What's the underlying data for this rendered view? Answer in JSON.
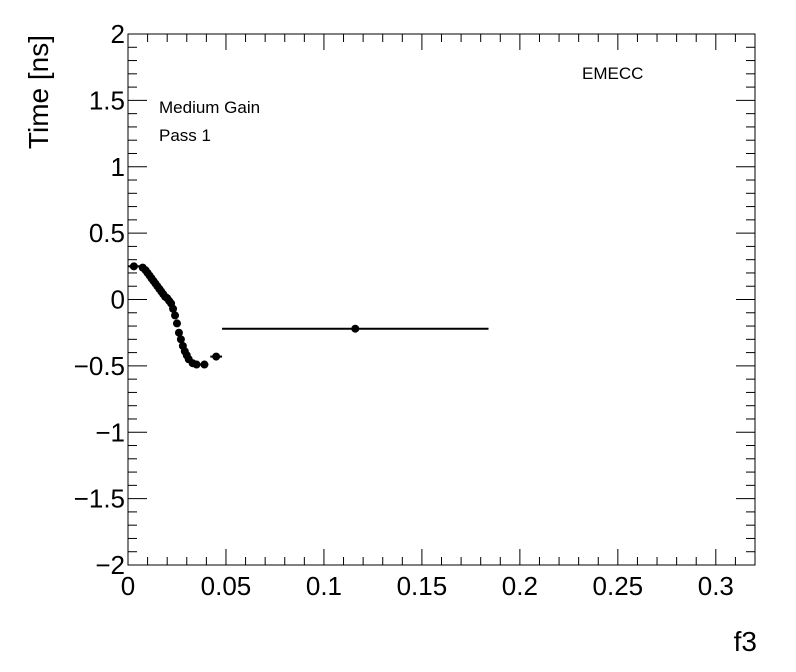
{
  "chart_data": {
    "type": "scatter",
    "xlabel": "f3",
    "ylabel": "Time [ns]",
    "xlim": [
      0,
      0.32
    ],
    "ylim": [
      -2,
      2
    ],
    "x_ticks": [
      0,
      0.05,
      0.1,
      0.15,
      0.2,
      0.25,
      0.3
    ],
    "x_tick_labels": [
      "0",
      "0.05",
      "0.1",
      "0.15",
      "0.2",
      "0.25",
      "0.3"
    ],
    "y_ticks": [
      -2,
      -1.5,
      -1,
      -0.5,
      0,
      0.5,
      1,
      1.5,
      2
    ],
    "y_tick_labels": [
      "−2",
      "−1.5",
      "−1",
      "−0.5",
      "0",
      "0.5",
      "1",
      "1.5",
      "2"
    ],
    "annotations": {
      "gain": "Medium Gain",
      "pass": "Pass 1",
      "region": "EMECC"
    },
    "grid": false,
    "series": [
      {
        "points": [
          {
            "x": 0.003,
            "y": 0.25,
            "xerr": 0.003
          },
          {
            "x": 0.0075,
            "y": 0.24,
            "xerr": 0.001
          },
          {
            "x": 0.009,
            "y": 0.22,
            "xerr": 0.001
          },
          {
            "x": 0.01,
            "y": 0.2,
            "xerr": 0.001
          },
          {
            "x": 0.011,
            "y": 0.18,
            "xerr": 0.001
          },
          {
            "x": 0.012,
            "y": 0.16,
            "xerr": 0.001
          },
          {
            "x": 0.013,
            "y": 0.14,
            "xerr": 0.001
          },
          {
            "x": 0.014,
            "y": 0.12,
            "xerr": 0.001
          },
          {
            "x": 0.015,
            "y": 0.1,
            "xerr": 0.001
          },
          {
            "x": 0.016,
            "y": 0.08,
            "xerr": 0.001
          },
          {
            "x": 0.017,
            "y": 0.06,
            "xerr": 0.001
          },
          {
            "x": 0.018,
            "y": 0.04,
            "xerr": 0.001
          },
          {
            "x": 0.019,
            "y": 0.02,
            "xerr": 0.001
          },
          {
            "x": 0.02,
            "y": 0.01,
            "xerr": 0.001
          },
          {
            "x": 0.021,
            "y": -0.01,
            "xerr": 0.001
          },
          {
            "x": 0.022,
            "y": -0.03,
            "xerr": 0.001
          },
          {
            "x": 0.023,
            "y": -0.07,
            "xerr": 0.001
          },
          {
            "x": 0.024,
            "y": -0.12,
            "xerr": 0.001
          },
          {
            "x": 0.025,
            "y": -0.18,
            "xerr": 0.001
          },
          {
            "x": 0.026,
            "y": -0.25,
            "xerr": 0.001
          },
          {
            "x": 0.027,
            "y": -0.3,
            "xerr": 0.001
          },
          {
            "x": 0.028,
            "y": -0.35,
            "xerr": 0.001
          },
          {
            "x": 0.029,
            "y": -0.39,
            "xerr": 0.001
          },
          {
            "x": 0.03,
            "y": -0.42,
            "xerr": 0.001
          },
          {
            "x": 0.031,
            "y": -0.45,
            "xerr": 0.001
          },
          {
            "x": 0.033,
            "y": -0.48,
            "xerr": 0.001
          },
          {
            "x": 0.035,
            "y": -0.49,
            "xerr": 0.001
          },
          {
            "x": 0.039,
            "y": -0.49,
            "xerr": 0.002
          },
          {
            "x": 0.045,
            "y": -0.43,
            "xerr": 0.003
          },
          {
            "x": 0.116,
            "y": -0.22,
            "xerr": 0.068
          }
        ]
      }
    ]
  }
}
